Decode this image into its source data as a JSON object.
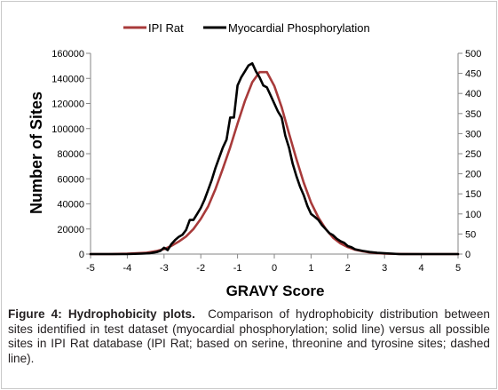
{
  "chart_data": {
    "type": "line",
    "xlabel": "GRAVY Score",
    "ylabel": "Number of Sites",
    "xlim": [
      -5,
      5
    ],
    "ylim_left": [
      0,
      160000
    ],
    "ylim_right": [
      0,
      500
    ],
    "x_ticks": [
      "-5",
      "-4",
      "-3",
      "-2",
      "-1",
      "0",
      "1",
      "2",
      "3",
      "4",
      "5"
    ],
    "y_ticks_left": [
      "0",
      "20000",
      "40000",
      "60000",
      "80000",
      "100000",
      "120000",
      "140000",
      "160000"
    ],
    "y_ticks_right": [
      "0",
      "50",
      "100",
      "150",
      "200",
      "250",
      "300",
      "350",
      "400",
      "450",
      "500"
    ],
    "legend_position": "top",
    "grid": false,
    "series": [
      {
        "name": "IPI Rat",
        "axis": "left",
        "color": "#a83a3a",
        "x": [
          -5,
          -4.5,
          -4,
          -3.5,
          -3.2,
          -3,
          -2.8,
          -2.6,
          -2.4,
          -2.2,
          -2,
          -1.8,
          -1.6,
          -1.4,
          -1.2,
          -1,
          -0.8,
          -0.6,
          -0.4,
          -0.2,
          0,
          0.2,
          0.4,
          0.6,
          0.8,
          1,
          1.2,
          1.4,
          1.6,
          1.8,
          2,
          2.2,
          2.4,
          2.6,
          2.8,
          3,
          3.5,
          4,
          4.5,
          5
        ],
        "values": [
          0,
          0,
          300,
          1000,
          2500,
          4000,
          6500,
          10000,
          14000,
          20000,
          28000,
          38000,
          52000,
          68000,
          85000,
          104000,
          122000,
          137000,
          145000,
          145000,
          134000,
          117000,
          96000,
          76000,
          57000,
          41000,
          29000,
          20000,
          13000,
          8500,
          5500,
          3500,
          2200,
          1300,
          700,
          350,
          100,
          0,
          0,
          0
        ]
      },
      {
        "name": "Myocardial Phosphorylation",
        "axis": "right",
        "color": "#000000",
        "x": [
          -5,
          -4,
          -3.6,
          -3.4,
          -3.2,
          -3.1,
          -3,
          -2.9,
          -2.8,
          -2.7,
          -2.6,
          -2.5,
          -2.4,
          -2.3,
          -2.2,
          -2.1,
          -2,
          -1.9,
          -1.8,
          -1.7,
          -1.6,
          -1.5,
          -1.4,
          -1.3,
          -1.2,
          -1.1,
          -1,
          -0.9,
          -0.8,
          -0.7,
          -0.6,
          -0.5,
          -0.4,
          -0.3,
          -0.2,
          -0.1,
          0,
          0.1,
          0.2,
          0.3,
          0.4,
          0.5,
          0.6,
          0.7,
          0.8,
          0.9,
          1,
          1.1,
          1.2,
          1.3,
          1.4,
          1.5,
          1.6,
          1.7,
          1.8,
          1.9,
          2,
          2.1,
          2.2,
          2.3,
          2.4,
          2.6,
          2.8,
          3,
          3.2,
          3.4,
          4,
          5
        ],
        "values": [
          0,
          0,
          1,
          2,
          5,
          8,
          16,
          10,
          25,
          35,
          43,
          48,
          60,
          85,
          85,
          100,
          115,
          135,
          160,
          185,
          215,
          240,
          265,
          285,
          340,
          340,
          420,
          440,
          455,
          470,
          475,
          455,
          440,
          420,
          415,
          395,
          375,
          355,
          340,
          295,
          265,
          225,
          195,
          168,
          147,
          120,
          100,
          93,
          85,
          72,
          62,
          52,
          47,
          38,
          32,
          28,
          20,
          17,
          12,
          10,
          8,
          5,
          3,
          2,
          1,
          0,
          0,
          0
        ]
      }
    ]
  },
  "caption": {
    "title": "Figure 4: Hydrophobicity plots.",
    "text": "Comparison of hydrophobicity distribution between sites identified in test dataset (myocardial phosphorylation; solid line) versus all possible sites in IPI Rat database (IPI Rat; based on serine, threonine and tyrosine sites; dashed line)."
  }
}
